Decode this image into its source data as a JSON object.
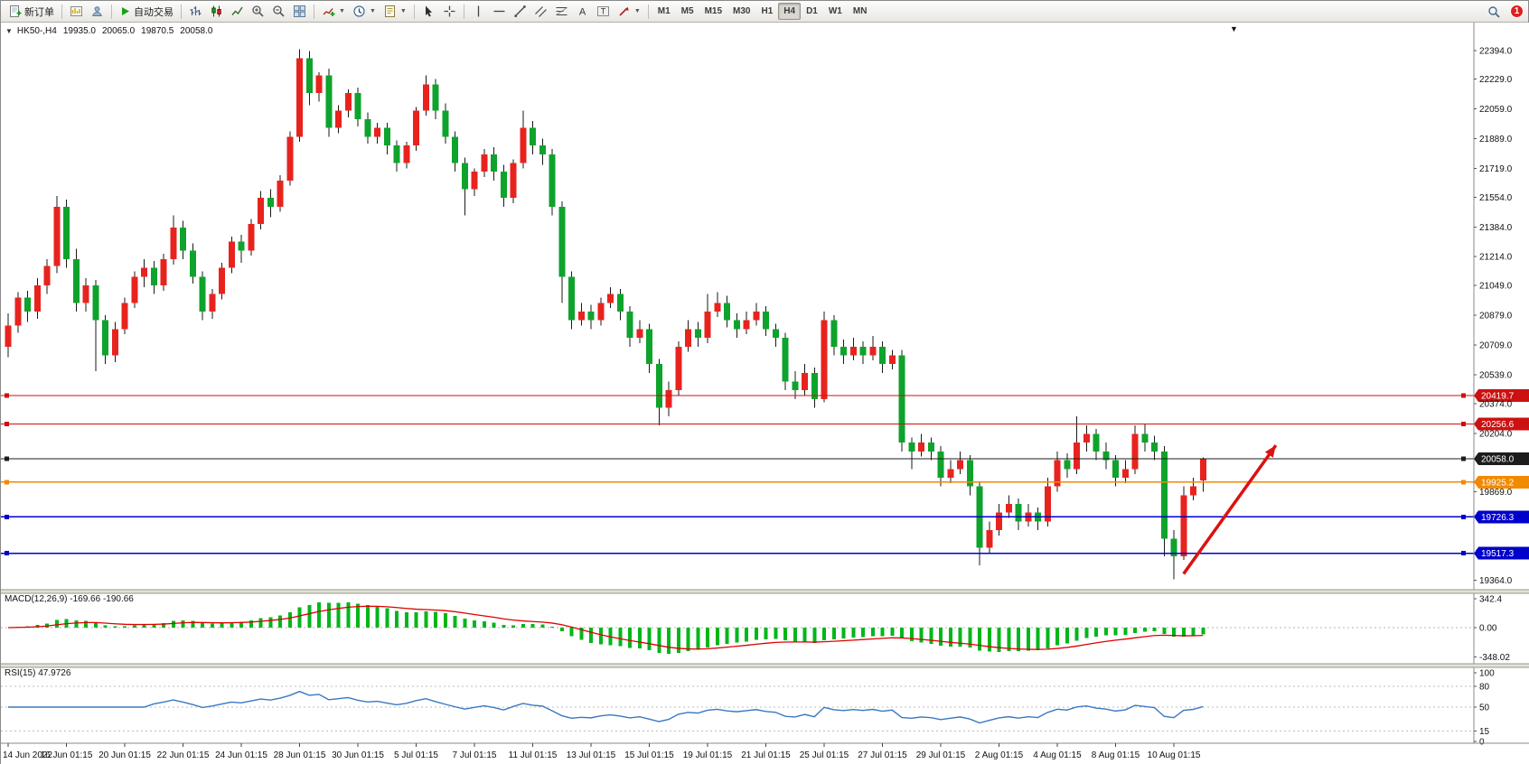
{
  "toolbar": {
    "new_order_label": "新订单",
    "auto_trading_label": "自动交易",
    "timeframes": [
      "M1",
      "M5",
      "M15",
      "M30",
      "H1",
      "H4",
      "D1",
      "W1",
      "MN"
    ],
    "active_timeframe": "H4",
    "notification_badge": "1"
  },
  "header": {
    "symbol": "HK50-,H4",
    "open": "19935.0",
    "high": "20065.0",
    "low": "19870.5",
    "close": "20058.0"
  },
  "macd_panel": {
    "label": "MACD(12,26,9) -169.66 -190.66",
    "value": -169.66,
    "signal_value": -190.66,
    "scale_labels": [
      "342.4",
      "0.00",
      "-348.02"
    ],
    "scale_values": [
      342.4,
      0,
      -348.02
    ]
  },
  "rsi_panel": {
    "label": "RSI(15) 47.9726",
    "value": 47.9726,
    "scale_labels": [
      "100",
      "80",
      "50",
      "15",
      "0"
    ],
    "scale_values": [
      100,
      80,
      50,
      15,
      0
    ],
    "levels": [
      80,
      50,
      15
    ]
  },
  "chart_data": {
    "type": "candlestick",
    "symbol": "HK50-",
    "period": "H4",
    "y_axis": {
      "min": 19330,
      "max": 22460,
      "labels": [
        "22394.0",
        "22229.0",
        "22059.0",
        "21889.0",
        "21719.0",
        "21554.0",
        "21384.0",
        "21214.0",
        "21049.0",
        "20879.0",
        "20709.0",
        "20539.0",
        "20374.0",
        "20204.0",
        "19869.0",
        "19364.0"
      ]
    },
    "x_axis": {
      "bars_per_label": 6,
      "labels": [
        "14 Jun 2022",
        "16 Jun 01:15",
        "20 Jun 01:15",
        "22 Jun 01:15",
        "24 Jun 01:15",
        "28 Jun 01:15",
        "30 Jun 01:15",
        "5 Jul 01:15",
        "7 Jul 01:15",
        "11 Jul 01:15",
        "13 Jul 01:15",
        "15 Jul 01:15",
        "19 Jul 01:15",
        "21 Jul 01:15",
        "25 Jul 01:15",
        "27 Jul 01:15",
        "29 Jul 01:15",
        "2 Aug 01:15",
        "4 Aug 01:15",
        "8 Aug 01:15",
        "10 Aug 01:15"
      ]
    },
    "hlines": [
      {
        "price": 20419.7,
        "label": "20419.7",
        "color": "#cc1111"
      },
      {
        "price": 20256.6,
        "label": "20256.6",
        "color": "#cc1111"
      },
      {
        "price": 20058.0,
        "label": "20058.0",
        "color": "#1c1c1c"
      },
      {
        "price": 19925.2,
        "label": "19925.2",
        "color": "#f28a00"
      },
      {
        "price": 19726.3,
        "label": "19726.3",
        "color": "#0000cc"
      },
      {
        "price": 19517.3,
        "label": "19517.3",
        "color": "#0000cc"
      }
    ],
    "annotation_arrow": {
      "from_bar": 121,
      "from_price": 19400,
      "to_bar": 130.5,
      "to_price": 20135,
      "color": "#dd1111"
    },
    "colors": {
      "up": "#e8231e",
      "down": "#0ea32c",
      "wick": "#1a1a1a",
      "macd_hist": "#00b61b",
      "macd_signal": "#e00000",
      "rsi_line": "#3a78c2",
      "background": "#ffffff"
    },
    "candles": [
      [
        20700,
        20890,
        20640,
        20820
      ],
      [
        20820,
        21010,
        20780,
        20980
      ],
      [
        20980,
        21020,
        20840,
        20900
      ],
      [
        20900,
        21090,
        20860,
        21050
      ],
      [
        21050,
        21200,
        21000,
        21160
      ],
      [
        21160,
        21560,
        21120,
        21500
      ],
      [
        21500,
        21540,
        21150,
        21200
      ],
      [
        21200,
        21260,
        20900,
        20950
      ],
      [
        20950,
        21090,
        20900,
        21050
      ],
      [
        21050,
        21080,
        20560,
        20850
      ],
      [
        20850,
        20880,
        20600,
        20650
      ],
      [
        20650,
        20840,
        20610,
        20800
      ],
      [
        20800,
        20980,
        20770,
        20950
      ],
      [
        20950,
        21130,
        20920,
        21100
      ],
      [
        21100,
        21200,
        21040,
        21150
      ],
      [
        21150,
        21190,
        21000,
        21050
      ],
      [
        21050,
        21230,
        21020,
        21200
      ],
      [
        21200,
        21450,
        21170,
        21380
      ],
      [
        21380,
        21420,
        21200,
        21250
      ],
      [
        21250,
        21290,
        21060,
        21100
      ],
      [
        21100,
        21130,
        20850,
        20900
      ],
      [
        20900,
        21030,
        20860,
        21000
      ],
      [
        21000,
        21180,
        20970,
        21150
      ],
      [
        21150,
        21330,
        21120,
        21300
      ],
      [
        21300,
        21340,
        21180,
        21250
      ],
      [
        21250,
        21430,
        21220,
        21400
      ],
      [
        21400,
        21590,
        21370,
        21550
      ],
      [
        21550,
        21600,
        21440,
        21500
      ],
      [
        21500,
        21680,
        21470,
        21650
      ],
      [
        21650,
        21930,
        21620,
        21900
      ],
      [
        21900,
        22400,
        21870,
        22350
      ],
      [
        22350,
        22390,
        22080,
        22150
      ],
      [
        22150,
        22270,
        22100,
        22250
      ],
      [
        22250,
        22290,
        21900,
        21950
      ],
      [
        21950,
        22080,
        21920,
        22050
      ],
      [
        22050,
        22170,
        22010,
        22150
      ],
      [
        22150,
        22180,
        21960,
        22000
      ],
      [
        22000,
        22040,
        21860,
        21900
      ],
      [
        21900,
        21980,
        21860,
        21950
      ],
      [
        21950,
        21980,
        21800,
        21850
      ],
      [
        21850,
        21880,
        21700,
        21750
      ],
      [
        21750,
        21870,
        21720,
        21850
      ],
      [
        21850,
        22070,
        21820,
        22050
      ],
      [
        22050,
        22250,
        22020,
        22200
      ],
      [
        22200,
        22230,
        22000,
        22050
      ],
      [
        22050,
        22090,
        21860,
        21900
      ],
      [
        21900,
        21930,
        21700,
        21750
      ],
      [
        21750,
        21780,
        21450,
        21600
      ],
      [
        21600,
        21720,
        21560,
        21700
      ],
      [
        21700,
        21830,
        21670,
        21800
      ],
      [
        21800,
        21840,
        21650,
        21700
      ],
      [
        21700,
        21740,
        21500,
        21550
      ],
      [
        21550,
        21770,
        21520,
        21750
      ],
      [
        21750,
        22050,
        21720,
        21950
      ],
      [
        21950,
        21990,
        21800,
        21850
      ],
      [
        21850,
        21890,
        21740,
        21800
      ],
      [
        21800,
        21830,
        21450,
        21500
      ],
      [
        21500,
        21530,
        20950,
        21100
      ],
      [
        21100,
        21130,
        20800,
        20850
      ],
      [
        20850,
        20950,
        20820,
        20900
      ],
      [
        20900,
        20940,
        20800,
        20850
      ],
      [
        20850,
        20980,
        20820,
        20950
      ],
      [
        20950,
        21040,
        20920,
        21000
      ],
      [
        21000,
        21030,
        20850,
        20900
      ],
      [
        20900,
        20930,
        20700,
        20750
      ],
      [
        20750,
        20850,
        20720,
        20800
      ],
      [
        20800,
        20830,
        20550,
        20600
      ],
      [
        20600,
        20630,
        20250,
        20350
      ],
      [
        20350,
        20500,
        20300,
        20450
      ],
      [
        20450,
        20730,
        20420,
        20700
      ],
      [
        20700,
        20850,
        20670,
        20800
      ],
      [
        20800,
        20840,
        20700,
        20750
      ],
      [
        20750,
        21000,
        20720,
        20900
      ],
      [
        20900,
        21010,
        20870,
        20950
      ],
      [
        20950,
        20990,
        20810,
        20850
      ],
      [
        20850,
        20890,
        20750,
        20800
      ],
      [
        20800,
        20900,
        20770,
        20850
      ],
      [
        20850,
        20950,
        20820,
        20900
      ],
      [
        20900,
        20930,
        20760,
        20800
      ],
      [
        20800,
        20830,
        20700,
        20750
      ],
      [
        20750,
        20780,
        20450,
        20500
      ],
      [
        20500,
        20560,
        20400,
        20450
      ],
      [
        20450,
        20600,
        20420,
        20550
      ],
      [
        20550,
        20580,
        20350,
        20400
      ],
      [
        20400,
        20900,
        20380,
        20850
      ],
      [
        20850,
        20880,
        20650,
        20700
      ],
      [
        20700,
        20740,
        20600,
        20650
      ],
      [
        20650,
        20750,
        20620,
        20700
      ],
      [
        20700,
        20730,
        20600,
        20650
      ],
      [
        20650,
        20760,
        20620,
        20700
      ],
      [
        20700,
        20730,
        20550,
        20600
      ],
      [
        20600,
        20680,
        20570,
        20650
      ],
      [
        20650,
        20680,
        20100,
        20150
      ],
      [
        20150,
        20180,
        20000,
        20100
      ],
      [
        20100,
        20200,
        20070,
        20150
      ],
      [
        20150,
        20180,
        20050,
        20100
      ],
      [
        20100,
        20130,
        19900,
        19950
      ],
      [
        19950,
        20050,
        19920,
        20000
      ],
      [
        20000,
        20100,
        19970,
        20050
      ],
      [
        20050,
        20080,
        19850,
        19900
      ],
      [
        19900,
        19930,
        19450,
        19550
      ],
      [
        19550,
        19700,
        19520,
        19650
      ],
      [
        19650,
        19800,
        19620,
        19750
      ],
      [
        19750,
        19850,
        19720,
        19800
      ],
      [
        19800,
        19830,
        19650,
        19700
      ],
      [
        19700,
        19800,
        19670,
        19750
      ],
      [
        19750,
        19780,
        19650,
        19700
      ],
      [
        19700,
        19950,
        19670,
        19900
      ],
      [
        19900,
        20100,
        19870,
        20050
      ],
      [
        20050,
        20090,
        19950,
        20000
      ],
      [
        20000,
        20300,
        19970,
        20150
      ],
      [
        20150,
        20250,
        20100,
        20200
      ],
      [
        20200,
        20230,
        20050,
        20100
      ],
      [
        20100,
        20150,
        20000,
        20050
      ],
      [
        20050,
        20080,
        19900,
        19950
      ],
      [
        19950,
        20050,
        19920,
        20000
      ],
      [
        20000,
        20250,
        19970,
        20200
      ],
      [
        20200,
        20260,
        20100,
        20150
      ],
      [
        20150,
        20190,
        20050,
        20100
      ],
      [
        20100,
        20130,
        19500,
        19600
      ],
      [
        19600,
        19650,
        19370,
        19500
      ],
      [
        19500,
        19900,
        19480,
        19850
      ],
      [
        19850,
        19950,
        19820,
        19900
      ],
      [
        19935,
        20065,
        19870.5,
        20058
      ]
    ]
  }
}
